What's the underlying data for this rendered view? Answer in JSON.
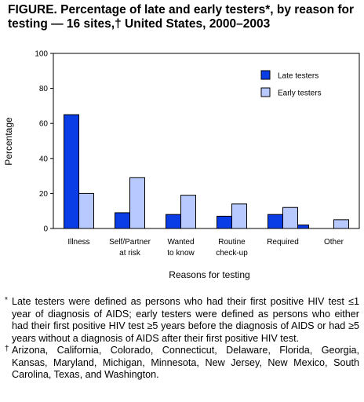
{
  "figure": {
    "title": "FIGURE. Percentage of late and early testers*, by reason for testing — 16 sites,† United States, 2000–2003"
  },
  "chart_data": {
    "type": "bar",
    "ylabel": "Percentage",
    "xlabel": "Reasons for testing",
    "ylim": [
      0,
      100
    ],
    "yticks": [
      "0",
      "20",
      "40",
      "60",
      "80",
      "100"
    ],
    "categories": [
      [
        "Illness"
      ],
      [
        "Self/Partner",
        "at risk"
      ],
      [
        "Wanted",
        "to know"
      ],
      [
        "Routine",
        "check-up"
      ],
      [
        "Required"
      ],
      [
        "Other"
      ]
    ],
    "series": [
      {
        "name": "Late testers",
        "color": "#0a3de6",
        "values": [
          65,
          9,
          8,
          7,
          8,
          0
        ]
      },
      {
        "name": "Early testers",
        "color": "#b7c9ff",
        "values": [
          20,
          29,
          19,
          14,
          12,
          5
        ]
      }
    ],
    "extra_bar": {
      "category_index": 4,
      "value": 2,
      "color": "#0a3de6"
    },
    "legend_position": "top-right",
    "grid": false
  },
  "footnotes": [
    {
      "mark": "*",
      "text": "Late testers were defined as persons who had their first positive HIV test ≤1 year of diagnosis of AIDS; early testers were defined as persons who either had their first positive HIV test ≥5 years before the diagnosis of AIDS or had ≥5 years without a diagnosis of AIDS after their first positive HIV test."
    },
    {
      "mark": "†",
      "text": "Arizona, California, Colorado, Connecticut, Delaware, Florida, Georgia, Kansas, Maryland, Michigan, Minnesota, New Jersey, New Mexico, South Carolina, Texas, and Washington."
    }
  ]
}
